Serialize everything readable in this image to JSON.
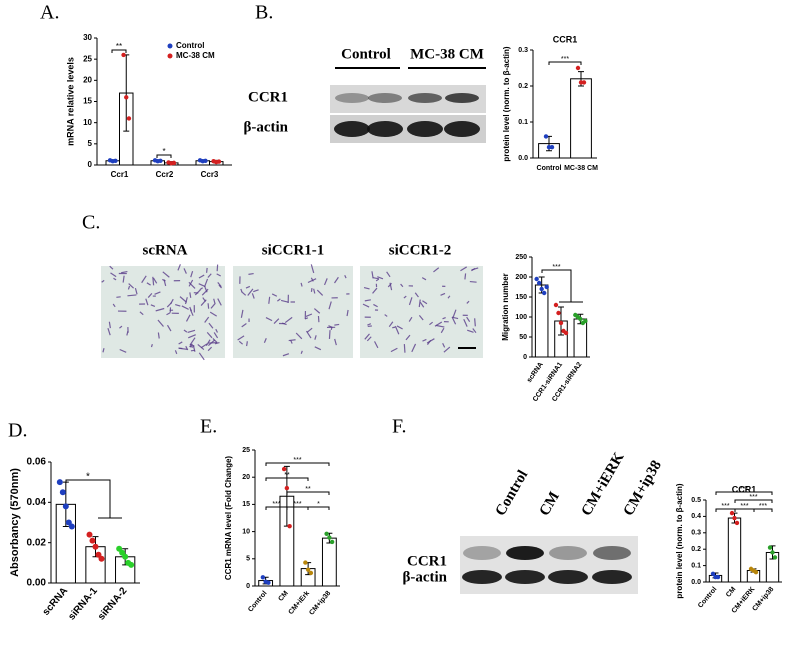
{
  "panel_labels": [
    "A.",
    "B.",
    "C.",
    "D.",
    "E.",
    "F."
  ],
  "blot_b": {
    "columns": [
      "Control",
      "MC-38 CM"
    ],
    "rows": [
      "CCR1",
      "β-actin"
    ]
  },
  "images_c": {
    "columns": [
      "scRNA",
      "siCCR1-1",
      "siCCR1-2"
    ]
  },
  "blot_f": {
    "columns": [
      "Control",
      "CM",
      "CM+iERK",
      "CM+ip38"
    ],
    "rows": [
      "CCR1",
      "β-actin"
    ]
  },
  "chart_data": [
    {
      "type": "bar",
      "ylabel": "mRNA relative levels",
      "categories": [
        "Ccr1",
        "Ccr2",
        "Ccr3"
      ],
      "series": [
        {
          "name": "Control",
          "color": "#1f3fbf",
          "values": [
            1,
            1,
            1
          ],
          "errors": [
            0.2,
            0.2,
            0.2
          ],
          "points": [
            [
              1.1,
              0.9,
              1.0
            ],
            [
              1.1,
              0.9,
              1.0
            ],
            [
              1.1,
              0.9,
              1.0
            ]
          ]
        },
        {
          "name": "MC-38 CM",
          "color": "#d42020",
          "values": [
            17,
            0.5,
            0.8
          ],
          "errors": [
            9,
            0.3,
            0.3
          ],
          "points": [
            [
              26,
              16,
              11
            ],
            [
              0.6,
              0.4,
              0.5
            ],
            [
              0.9,
              0.7,
              0.8
            ]
          ]
        }
      ],
      "ylim": [
        0,
        30
      ],
      "yticks": [
        0,
        5,
        10,
        15,
        20,
        25,
        30
      ],
      "legend": "upper right",
      "annotations": [
        "**",
        "*"
      ]
    },
    {
      "type": "bar",
      "title": "CCR1",
      "ylabel": "protein level (norm. to β-actin)",
      "categories": [
        "Control",
        "MC-38 CM"
      ],
      "series": [
        {
          "values": [
            0.04,
            0.22
          ],
          "errors": [
            0.02,
            0.02
          ],
          "points": [
            [
              0.06,
              0.03,
              0.03
            ],
            [
              0.25,
              0.21,
              0.21
            ]
          ],
          "point_colors": [
            "#1f3fbf",
            "#d42020"
          ]
        }
      ],
      "ylim": [
        0,
        0.3
      ],
      "yticks": [
        {
          "value": 0,
          "label": "0.0"
        },
        0.1,
        0.2,
        0.3
      ],
      "annotations": [
        "***"
      ]
    },
    {
      "type": "bar",
      "ylabel": "Migration number",
      "categories": [
        "scRNA",
        "CCR1-siRNA1",
        "CCR1-siRNA2"
      ],
      "series": [
        {
          "values": [
            180,
            90,
            95
          ],
          "errors": [
            20,
            35,
            12
          ],
          "points": [
            [
              195,
              185,
              170,
              160,
              175
            ],
            [
              130,
              110,
              85,
              65,
              60
            ],
            [
              105,
              100,
              95,
              85,
              90
            ]
          ],
          "point_colors": [
            "#1f3fbf",
            "#d42020",
            "#2aa02a"
          ]
        }
      ],
      "ylim": [
        0,
        250
      ],
      "yticks": [
        0,
        50,
        100,
        150,
        200,
        250
      ],
      "annotations": [
        "***"
      ]
    },
    {
      "type": "bar",
      "ylabel": "Absorbancy (570nm)",
      "categories": [
        "scRNA",
        "siRNA-1",
        "siRNA-2"
      ],
      "series": [
        {
          "values": [
            0.039,
            0.018,
            0.013
          ],
          "errors": [
            0.011,
            0.005,
            0.004
          ],
          "points": [
            [
              0.05,
              0.045,
              0.038,
              0.03,
              0.028
            ],
            [
              0.024,
              0.021,
              0.018,
              0.014,
              0.012
            ],
            [
              0.017,
              0.015,
              0.013,
              0.01,
              0.009
            ]
          ],
          "point_colors": [
            "#1f3fbf",
            "#d42020",
            "#2ad02a"
          ]
        }
      ],
      "ylim": [
        0,
        0.06
      ],
      "yticks": [
        {
          "value": 0,
          "label": "0.00"
        },
        0.02,
        0.04,
        0.06
      ],
      "annotations": [
        "*"
      ]
    },
    {
      "type": "bar",
      "ylabel": "CCR1 mRNA level (Fold Change)",
      "categories": [
        "Control",
        "CM",
        "CM+iErk",
        "CM+ip38"
      ],
      "series": [
        {
          "values": [
            1,
            16.5,
            3.2,
            8.8
          ],
          "errors": [
            0.6,
            5.5,
            1.1,
            0.9
          ],
          "points": [
            [
              1.6,
              0.8,
              0.6
            ],
            [
              21.5,
              18,
              11
            ],
            [
              4.3,
              3,
              2.4
            ],
            [
              9.6,
              8.9,
              8.1
            ]
          ],
          "point_colors": [
            "#1f3fbf",
            "#d42020",
            "#b8860b",
            "#2aa02a"
          ]
        }
      ],
      "ylim": [
        0,
        25
      ],
      "yticks": [
        0,
        5,
        10,
        15,
        20,
        25
      ],
      "annotations": [
        "***",
        "**",
        "**",
        "***",
        "***",
        "*"
      ]
    },
    {
      "type": "bar",
      "title": "CCR1",
      "ylabel": "protein level (norm. to β-actin)",
      "categories": [
        "Control",
        "CM",
        "CM+iERK",
        "CM+ip38"
      ],
      "series": [
        {
          "values": [
            0.04,
            0.39,
            0.07,
            0.18
          ],
          "errors": [
            0.015,
            0.03,
            0.01,
            0.04
          ],
          "points": [
            [
              0.05,
              0.03,
              0.03
            ],
            [
              0.42,
              0.39,
              0.36
            ],
            [
              0.08,
              0.07,
              0.06
            ],
            [
              0.21,
              0.18,
              0.15
            ]
          ],
          "point_colors": [
            "#1f3fbf",
            "#d42020",
            "#b8860b",
            "#2aa02a"
          ]
        }
      ],
      "ylim": [
        0,
        0.5
      ],
      "yticks": [
        {
          "value": 0,
          "label": "0.0"
        },
        0.1,
        0.2,
        0.3,
        0.4,
        0.5
      ],
      "annotations": [
        "***",
        "***",
        "***",
        "***",
        "***"
      ]
    }
  ]
}
